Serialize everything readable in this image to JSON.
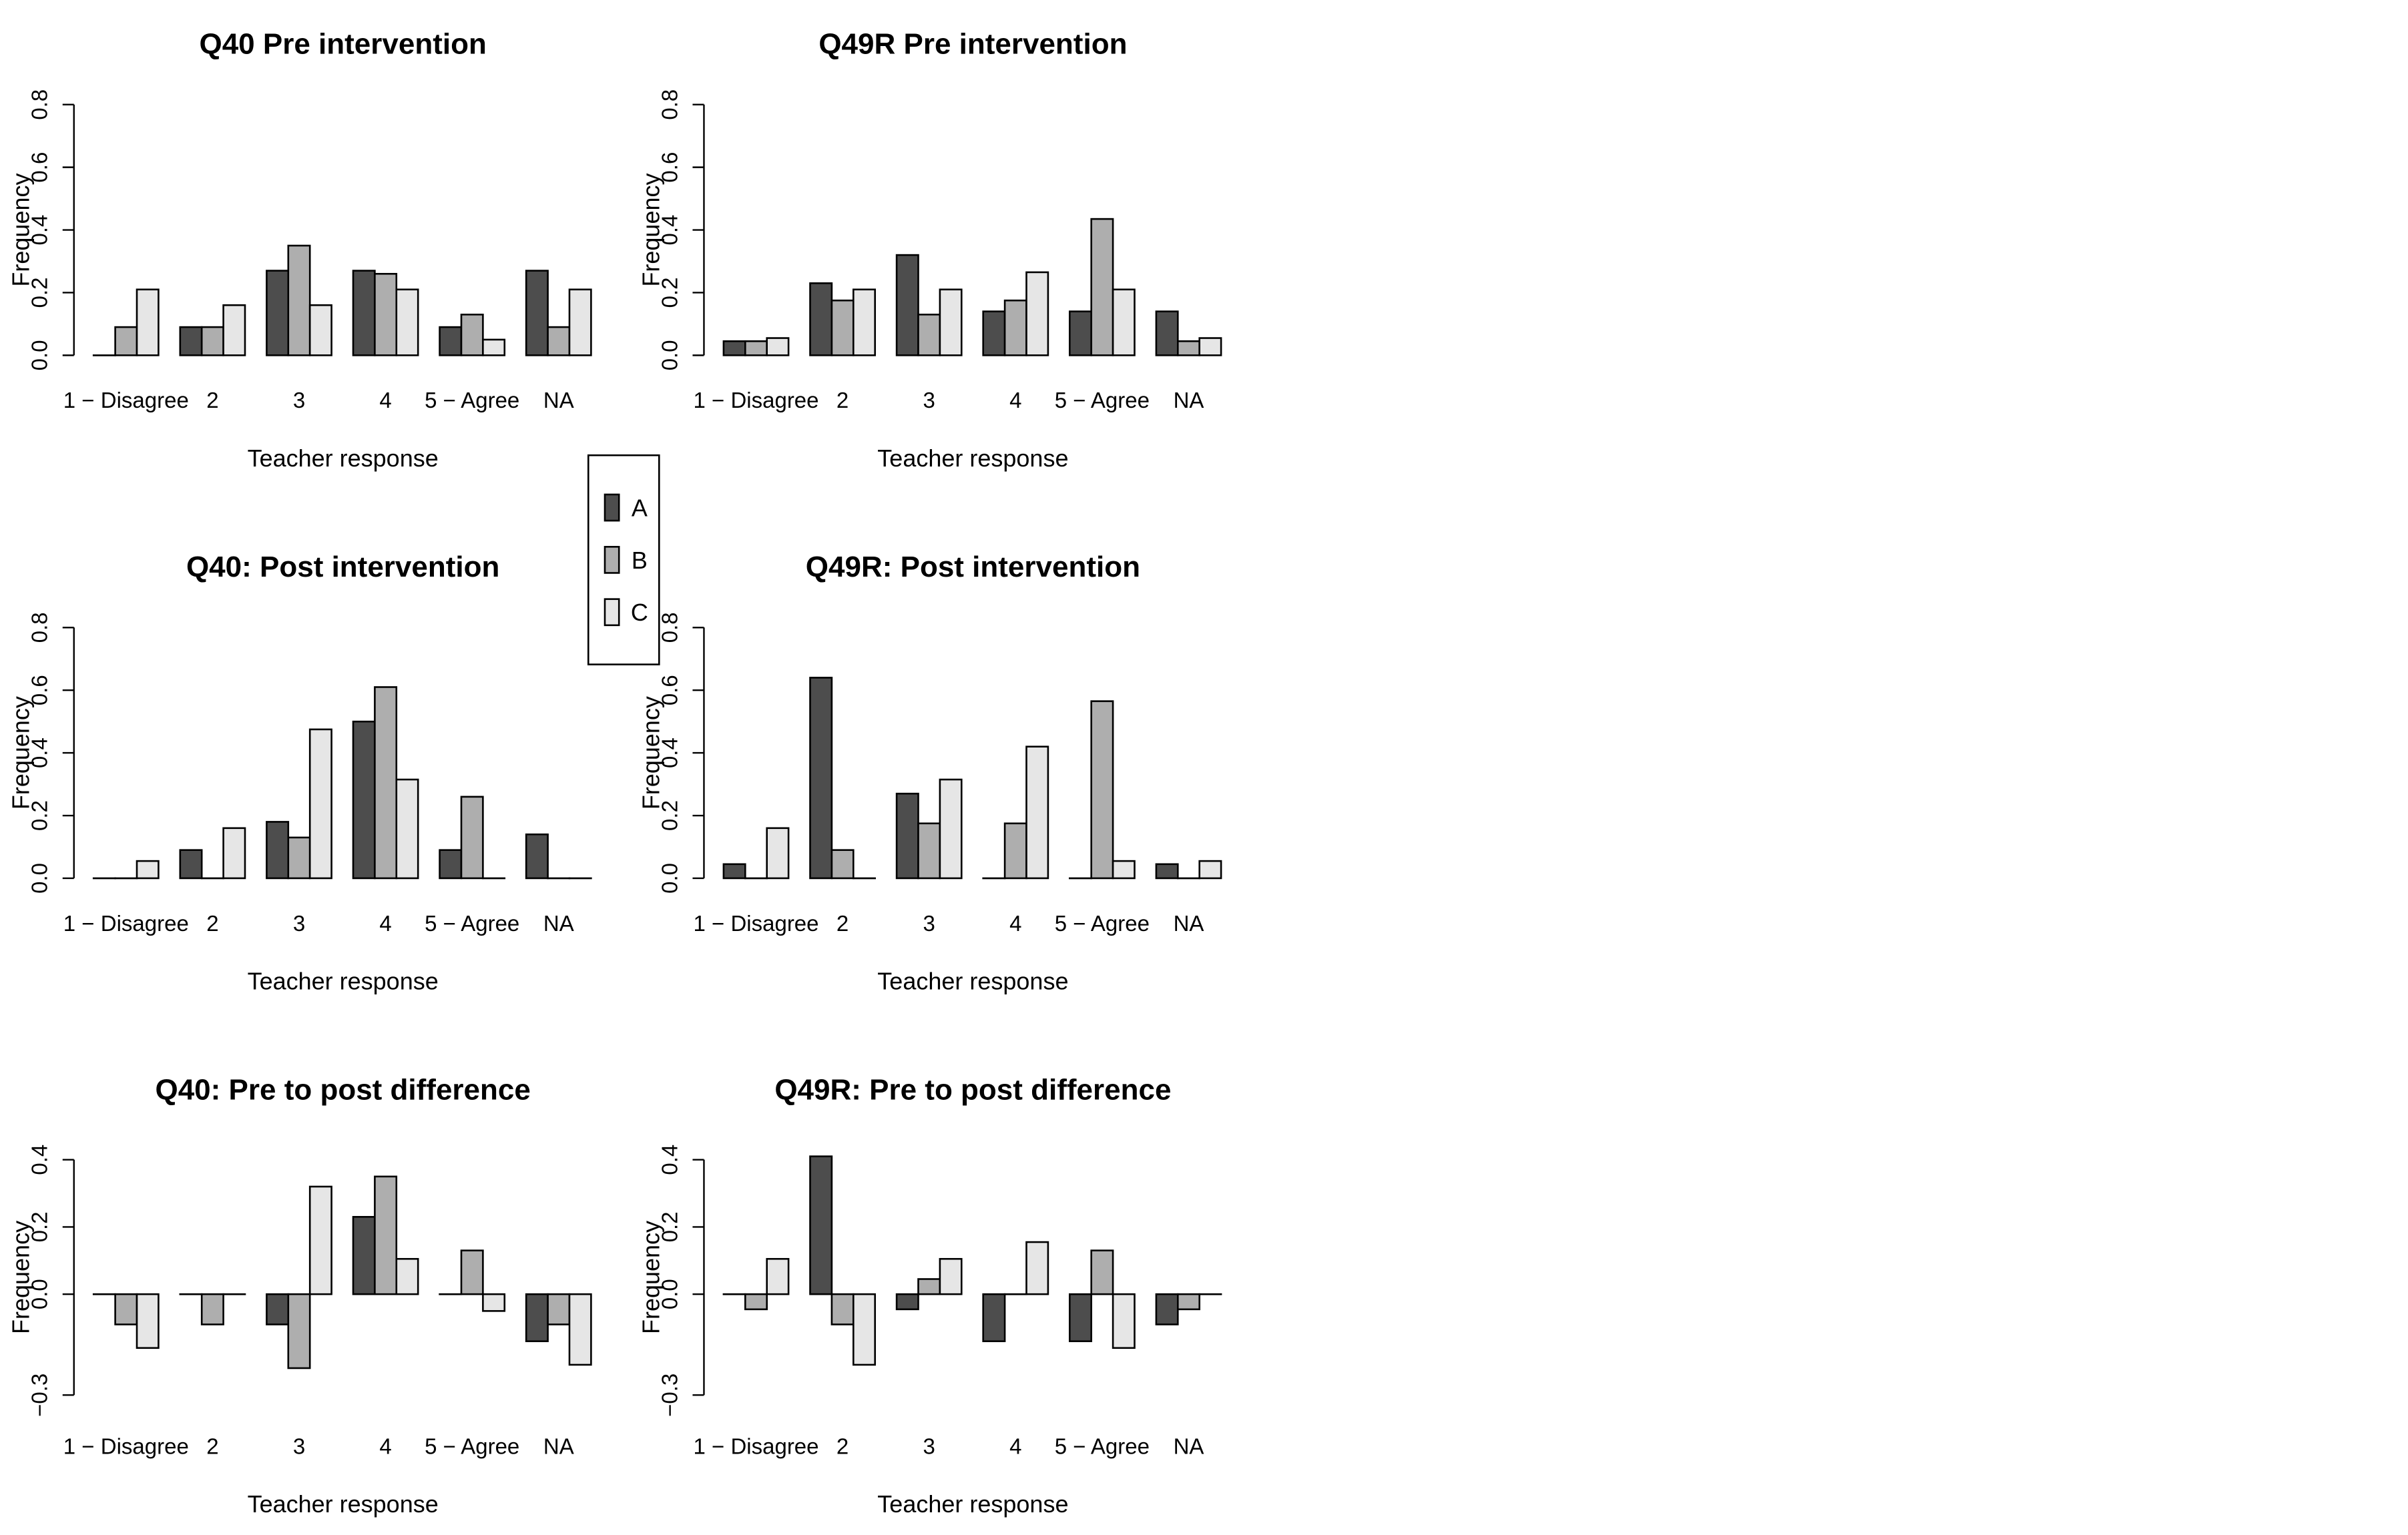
{
  "legend": {
    "placement": "center",
    "items": [
      {
        "label": "A",
        "color": "#4d4d4d"
      },
      {
        "label": "B",
        "color": "#aeaeae"
      },
      {
        "label": "C",
        "color": "#e6e6e6"
      }
    ]
  },
  "chart_data": [
    {
      "id": "q40-pre",
      "type": "bar",
      "grouped": true,
      "title": "Q40 Pre intervention",
      "xlabel": "Teacher response",
      "ylabel": "Frequency",
      "ylim": [
        0,
        0.8
      ],
      "yticks": [
        "0.0",
        "0.2",
        "0.4",
        "0.6",
        "0.8"
      ],
      "ytick_values": [
        0,
        0.2,
        0.4,
        0.6,
        0.8
      ],
      "grid": false,
      "categories": [
        "1 − Disagree",
        "2",
        "3",
        "4",
        "5 − Agree",
        "NA"
      ],
      "series": [
        {
          "name": "A",
          "values": [
            0.0,
            0.09,
            0.27,
            0.27,
            0.09,
            0.27
          ]
        },
        {
          "name": "B",
          "values": [
            0.09,
            0.09,
            0.35,
            0.26,
            0.13,
            0.09
          ]
        },
        {
          "name": "C",
          "values": [
            0.21,
            0.16,
            0.16,
            0.21,
            0.05,
            0.21
          ]
        }
      ]
    },
    {
      "id": "q49r-pre",
      "type": "bar",
      "grouped": true,
      "title": "Q49R Pre intervention",
      "xlabel": "Teacher response",
      "ylabel": "Frequency",
      "ylim": [
        0,
        0.8
      ],
      "yticks": [
        "0.0",
        "0.2",
        "0.4",
        "0.6",
        "0.8"
      ],
      "ytick_values": [
        0,
        0.2,
        0.4,
        0.6,
        0.8
      ],
      "grid": false,
      "categories": [
        "1 − Disagree",
        "2",
        "3",
        "4",
        "5 − Agree",
        "NA"
      ],
      "series": [
        {
          "name": "A",
          "values": [
            0.045,
            0.23,
            0.32,
            0.14,
            0.14,
            0.14
          ]
        },
        {
          "name": "B",
          "values": [
            0.045,
            0.175,
            0.13,
            0.175,
            0.435,
            0.045
          ]
        },
        {
          "name": "C",
          "values": [
            0.055,
            0.21,
            0.21,
            0.265,
            0.21,
            0.055
          ]
        }
      ]
    },
    {
      "id": "q40-post",
      "type": "bar",
      "grouped": true,
      "title": "Q40: Post intervention",
      "xlabel": "Teacher response",
      "ylabel": "Frequency",
      "ylim": [
        0,
        0.8
      ],
      "yticks": [
        "0.0",
        "0.2",
        "0.4",
        "0.6",
        "0.8"
      ],
      "ytick_values": [
        0,
        0.2,
        0.4,
        0.6,
        0.8
      ],
      "grid": false,
      "categories": [
        "1 − Disagree",
        "2",
        "3",
        "4",
        "5 − Agree",
        "NA"
      ],
      "series": [
        {
          "name": "A",
          "values": [
            0.0,
            0.09,
            0.18,
            0.5,
            0.09,
            0.14
          ]
        },
        {
          "name": "B",
          "values": [
            0.0,
            0.0,
            0.13,
            0.61,
            0.26,
            0.0
          ]
        },
        {
          "name": "C",
          "values": [
            0.055,
            0.16,
            0.475,
            0.315,
            0.0,
            0.0
          ]
        }
      ]
    },
    {
      "id": "q49r-post",
      "type": "bar",
      "grouped": true,
      "title": "Q49R: Post intervention",
      "xlabel": "Teacher response",
      "ylabel": "Frequency",
      "ylim": [
        0,
        0.8
      ],
      "yticks": [
        "0.0",
        "0.2",
        "0.4",
        "0.6",
        "0.8"
      ],
      "ytick_values": [
        0,
        0.2,
        0.4,
        0.6,
        0.8
      ],
      "grid": false,
      "categories": [
        "1 − Disagree",
        "2",
        "3",
        "4",
        "5 − Agree",
        "NA"
      ],
      "series": [
        {
          "name": "A",
          "values": [
            0.045,
            0.64,
            0.27,
            0.0,
            0.0,
            0.045
          ]
        },
        {
          "name": "B",
          "values": [
            0.0,
            0.09,
            0.175,
            0.175,
            0.565,
            0.0
          ]
        },
        {
          "name": "C",
          "values": [
            0.16,
            0.0,
            0.315,
            0.42,
            0.055,
            0.055
          ]
        }
      ]
    },
    {
      "id": "q40-diff",
      "type": "bar",
      "grouped": true,
      "title": "Q40: Pre to post difference",
      "xlabel": "Teacher response",
      "ylabel": "Frequency",
      "ylim": [
        -0.3,
        0.4
      ],
      "yticks": [
        "−0.3",
        "0.0",
        "0.2",
        "0.4"
      ],
      "ytick_values": [
        -0.3,
        0.0,
        0.2,
        0.4
      ],
      "grid": false,
      "categories": [
        "1 − Disagree",
        "2",
        "3",
        "4",
        "5 − Agree",
        "NA"
      ],
      "series": [
        {
          "name": "A",
          "values": [
            0.0,
            0.0,
            -0.09,
            0.23,
            0.0,
            -0.14
          ]
        },
        {
          "name": "B",
          "values": [
            -0.09,
            -0.09,
            -0.22,
            0.35,
            0.13,
            -0.09
          ]
        },
        {
          "name": "C",
          "values": [
            -0.16,
            0.0,
            0.32,
            0.105,
            -0.05,
            -0.21
          ]
        }
      ]
    },
    {
      "id": "q49r-diff",
      "type": "bar",
      "grouped": true,
      "title": "Q49R: Pre to post difference",
      "xlabel": "Teacher response",
      "ylabel": "Frequency",
      "ylim": [
        -0.3,
        0.4
      ],
      "yticks": [
        "−0.3",
        "0.0",
        "0.2",
        "0.4"
      ],
      "ytick_values": [
        -0.3,
        0.0,
        0.2,
        0.4
      ],
      "grid": false,
      "categories": [
        "1 − Disagree",
        "2",
        "3",
        "4",
        "5 − Agree",
        "NA"
      ],
      "series": [
        {
          "name": "A",
          "values": [
            0.0,
            0.41,
            -0.045,
            -0.14,
            -0.14,
            -0.09
          ]
        },
        {
          "name": "B",
          "values": [
            -0.045,
            -0.09,
            0.045,
            0.0,
            0.13,
            -0.045
          ]
        },
        {
          "name": "C",
          "values": [
            0.105,
            -0.21,
            0.105,
            0.155,
            -0.16,
            0.0
          ]
        }
      ]
    }
  ]
}
